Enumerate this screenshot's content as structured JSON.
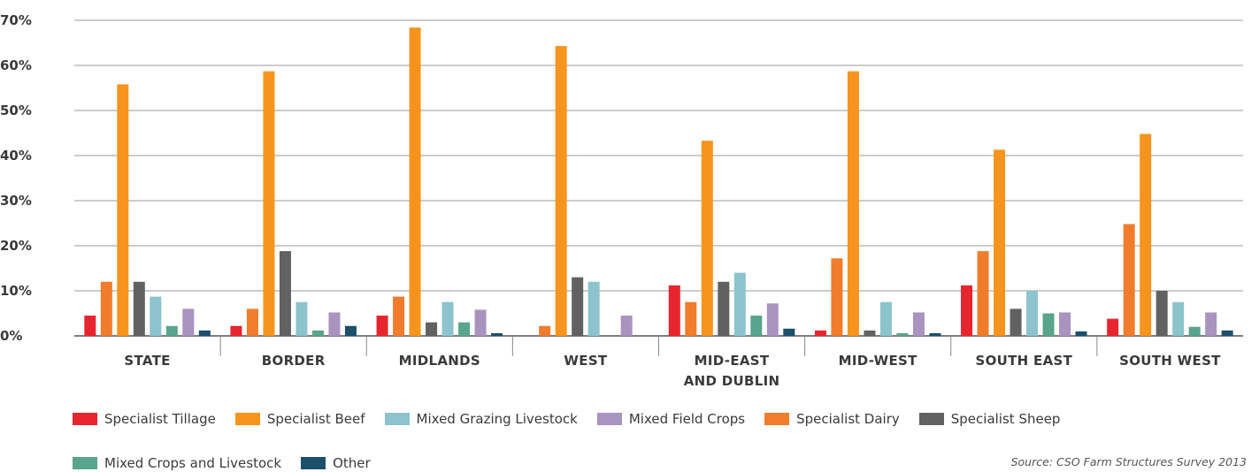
{
  "chart_data": {
    "type": "bar",
    "categories": [
      [
        "STATE"
      ],
      [
        "BORDER"
      ],
      [
        "MIDLANDS"
      ],
      [
        "WEST"
      ],
      [
        "MID-EAST",
        "AND DUBLIN"
      ],
      [
        "MID-WEST"
      ],
      [
        "SOUTH EAST"
      ],
      [
        "SOUTH WEST"
      ]
    ],
    "series": [
      {
        "name": "Specialist Tillage",
        "color": "#e8242e",
        "values": [
          4.5,
          2.2,
          4.5,
          0,
          11.2,
          1.2,
          11.2,
          3.8
        ]
      },
      {
        "name": "Specialist Dairy",
        "color": "#f07c2c",
        "values": [
          12,
          6,
          8.7,
          2.2,
          7.5,
          17.2,
          18.8,
          24.8
        ]
      },
      {
        "name": "Specialist Beef",
        "color": "#f7941d",
        "values": [
          55.8,
          58.7,
          68.4,
          64.3,
          43.3,
          58.7,
          41.3,
          44.8
        ]
      },
      {
        "name": "Specialist Sheep",
        "color": "#616161",
        "values": [
          12,
          18.8,
          3,
          13,
          12,
          1.2,
          6,
          10
        ]
      },
      {
        "name": "Mixed Grazing Livestock",
        "color": "#8cc3cd",
        "values": [
          8.7,
          7.5,
          7.5,
          12,
          14,
          7.5,
          10,
          7.5
        ]
      },
      {
        "name": "Mixed Crops and Livestock",
        "color": "#58a48c",
        "values": [
          2.2,
          1.2,
          3,
          0,
          4.5,
          0.6,
          5,
          2
        ]
      },
      {
        "name": "Mixed Field Crops",
        "color": "#a993bf",
        "values": [
          6,
          5.2,
          5.8,
          4.5,
          7.2,
          5.2,
          5.2,
          5.2
        ]
      },
      {
        "name": "Other",
        "color": "#1b4f6c",
        "values": [
          1.2,
          2.2,
          0.6,
          0,
          1.6,
          0.6,
          1,
          1.2
        ]
      }
    ],
    "yticks": [
      "0%",
      "10%",
      "20%",
      "30%",
      "40%",
      "50%",
      "60%",
      "70%"
    ],
    "ylim": [
      0,
      70
    ],
    "grid": true,
    "legend_position": "bottom",
    "title": "",
    "xlabel": "",
    "ylabel": ""
  },
  "legend": {
    "row1": [
      {
        "label": "Specialist Tillage",
        "color": "#e8242e"
      },
      {
        "label": "Specialist Beef",
        "color": "#f7941d"
      },
      {
        "label": "Mixed Grazing Livestock",
        "color": "#8cc3cd"
      },
      {
        "label": "Mixed Field Crops",
        "color": "#a993bf"
      },
      {
        "label": "Specialist Dairy",
        "color": "#f07c2c"
      },
      {
        "label": "Specialist Sheep",
        "color": "#616161"
      }
    ],
    "row2": [
      {
        "label": "Mixed Crops and Livestock",
        "color": "#58a48c"
      },
      {
        "label": "Other",
        "color": "#1b4f6c"
      }
    ]
  },
  "source": "Source: CSO Farm Structures Survey 2013"
}
